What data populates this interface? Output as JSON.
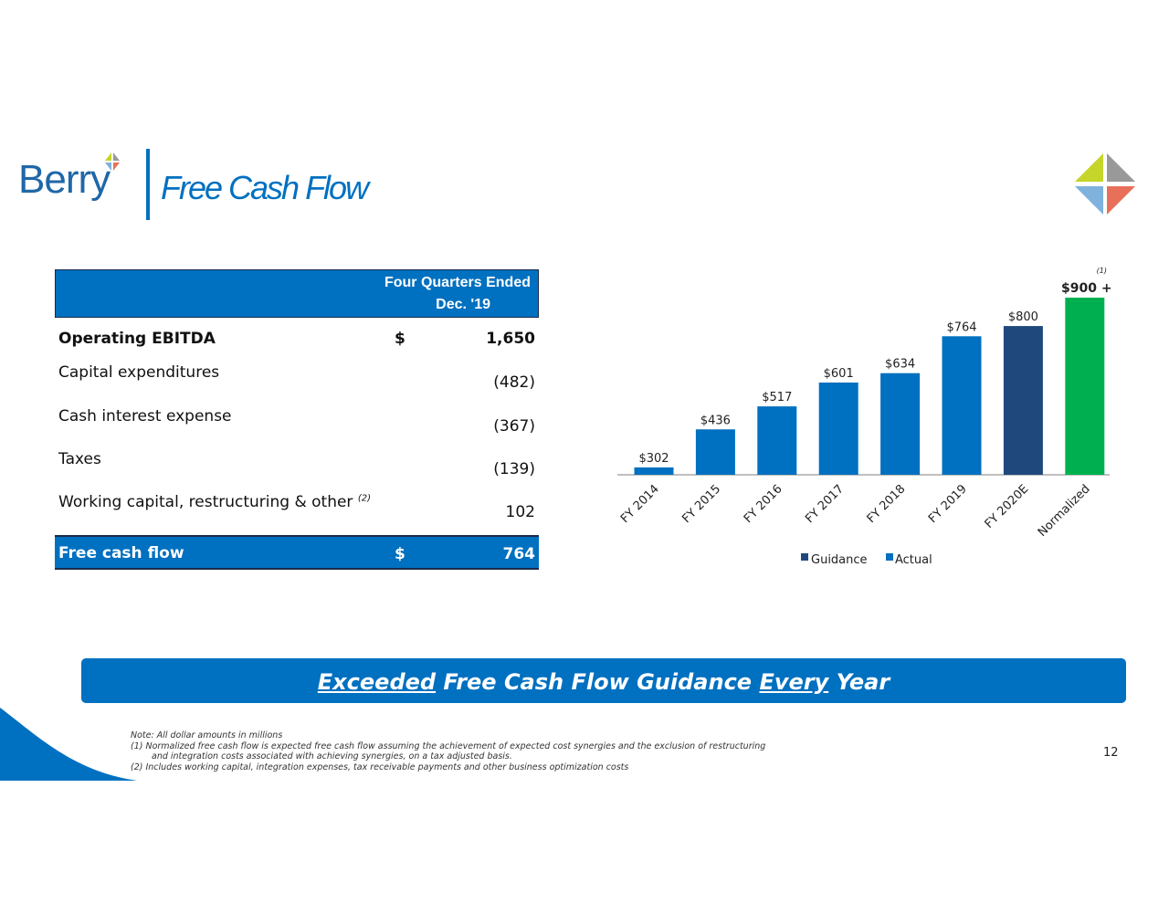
{
  "header": {
    "logo": "Berry",
    "title": "Free Cash Flow"
  },
  "table": {
    "header_line1": "Four Quarters Ended",
    "header_line2": "Dec. '19",
    "rows": [
      {
        "label": "Operating EBITDA",
        "currency": "$",
        "value": "1,650",
        "bold": true
      },
      {
        "label": "Capital expenditures",
        "value": "(482)"
      },
      {
        "label": "Cash interest expense",
        "value": "(367)"
      },
      {
        "label": "Taxes",
        "value": "(139)"
      },
      {
        "label": "Working capital, restructuring & other",
        "footnote": "(2)",
        "value": "102"
      }
    ],
    "total": {
      "label": "Free cash flow",
      "currency": "$",
      "value": "764"
    }
  },
  "chart_data": {
    "type": "bar",
    "categories": [
      "FY 2014",
      "FY 2015",
      "FY 2016",
      "FY 2017",
      "FY 2018",
      "FY 2019",
      "FY 2020E",
      "Normalized"
    ],
    "values": [
      302,
      436,
      517,
      601,
      634,
      764,
      800,
      900
    ],
    "data_labels": [
      "$302",
      "$436",
      "$517",
      "$601",
      "$634",
      "$764",
      "$800",
      "$900 +"
    ],
    "series_type": [
      "Actual",
      "Actual",
      "Actual",
      "Actual",
      "Actual",
      "Actual",
      "Guidance",
      "Normalized"
    ],
    "label_footnote": "(1)",
    "legend": [
      {
        "name": "Guidance",
        "color": "#1f497d"
      },
      {
        "name": "Actual",
        "color": "#0070c0"
      }
    ],
    "normalized_color": "#00b050",
    "ylim": [
      276,
      900
    ],
    "legend_position": "bottom",
    "grid": false
  },
  "banner": {
    "part1": "Exceeded",
    "part2": " Free Cash Flow Guidance ",
    "part3": "Every",
    "part4": " Year"
  },
  "notes": [
    "Note: All dollar amounts in millions",
    "(1) Normalized free cash flow is expected free cash flow assuming the achievement of expected cost synergies and the exclusion of restructuring",
    "and integration costs associated with achieving synergies, on a tax adjusted basis.",
    "(2) Includes working capital, integration expenses, tax receivable payments and other business optimization costs"
  ],
  "page_number": "12"
}
